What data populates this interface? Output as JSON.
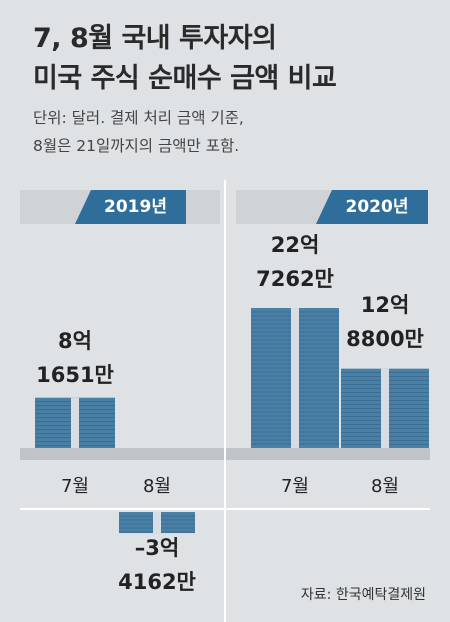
{
  "title_lines": [
    "7, 8월 국내 투자자의",
    "미국 주식 순매수 금액 비교"
  ],
  "note_lines": [
    "단위: 달러. 결제 처리 금액 기준,",
    "8월은 21일까지의 금액만 포함."
  ],
  "source": "자료: 한국예탁결제원",
  "colors": {
    "bundle": "#4a7fa6",
    "bundle_dark": "#2f5f85",
    "strap": "#d7dde2",
    "badge": "#2f6d9a"
  },
  "chart_data": {
    "type": "bar",
    "groups": [
      "2019년",
      "2020년"
    ],
    "categories": [
      "7월",
      "8월"
    ],
    "unit": "달러",
    "series": [
      {
        "name": "2019년",
        "values": [
          816510000,
          -341620000
        ],
        "labels": [
          [
            "8억",
            "1651만"
          ],
          [
            "–3억",
            "4162만"
          ]
        ]
      },
      {
        "name": "2020년",
        "values": [
          2272620000,
          1288000000
        ],
        "labels": [
          [
            "22억",
            "7262만"
          ],
          [
            "12억",
            "8800만"
          ]
        ]
      }
    ]
  }
}
